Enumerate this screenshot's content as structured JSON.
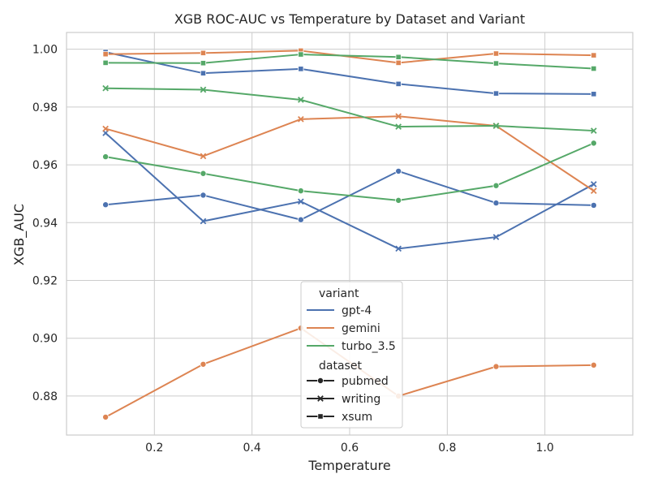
{
  "chart_data": {
    "type": "line",
    "title": "XGB ROC-AUC vs Temperature by Dataset and Variant",
    "xlabel": "Temperature",
    "ylabel": "XGB_AUC",
    "x": [
      0.1,
      0.3,
      0.5,
      0.7,
      0.9,
      1.1
    ],
    "xlim": [
      0.02,
      1.18
    ],
    "ylim": [
      0.8665,
      1.0058
    ],
    "xticks": [
      0.2,
      0.4,
      0.6,
      0.8,
      1.0
    ],
    "xtick_labels": [
      "0.2",
      "0.4",
      "0.6",
      "0.8",
      "1.0"
    ],
    "yticks": [
      0.88,
      0.9,
      0.92,
      0.94,
      0.96,
      0.98,
      1.0
    ],
    "ytick_labels": [
      "0.88",
      "0.90",
      "0.92",
      "0.94",
      "0.96",
      "0.98",
      "1.00"
    ],
    "grid": true,
    "legend": {
      "placement": "lower-center",
      "variant_title": "variant",
      "dataset_title": "dataset",
      "variants": [
        {
          "name": "gpt-4",
          "color": "#4c72b0"
        },
        {
          "name": "gemini",
          "color": "#dd8452"
        },
        {
          "name": "turbo_3.5",
          "color": "#55a868"
        }
      ],
      "datasets": [
        {
          "name": "pubmed",
          "marker": "circle"
        },
        {
          "name": "writing",
          "marker": "x"
        },
        {
          "name": "xsum",
          "marker": "square"
        }
      ]
    },
    "series": [
      {
        "variant": "gpt-4",
        "dataset": "pubmed",
        "color": "#4c72b0",
        "marker": "circle",
        "values": [
          0.9462,
          0.9495,
          0.941,
          0.9578,
          0.9468,
          0.946
        ]
      },
      {
        "variant": "gpt-4",
        "dataset": "writing",
        "color": "#4c72b0",
        "marker": "x",
        "values": [
          0.971,
          0.9405,
          0.9473,
          0.931,
          0.935,
          0.9533
        ]
      },
      {
        "variant": "gpt-4",
        "dataset": "xsum",
        "color": "#4c72b0",
        "marker": "square",
        "values": [
          0.999,
          0.9917,
          0.9932,
          0.988,
          0.9847,
          0.9845
        ]
      },
      {
        "variant": "gemini",
        "dataset": "pubmed",
        "color": "#dd8452",
        "marker": "circle",
        "values": [
          0.8727,
          0.891,
          0.9035,
          0.88,
          0.8902,
          0.8907
        ]
      },
      {
        "variant": "gemini",
        "dataset": "writing",
        "color": "#dd8452",
        "marker": "x",
        "values": [
          0.9725,
          0.963,
          0.9758,
          0.9768,
          0.9735,
          0.951
        ]
      },
      {
        "variant": "gemini",
        "dataset": "xsum",
        "color": "#dd8452",
        "marker": "square",
        "values": [
          0.9983,
          0.9987,
          0.9995,
          0.9953,
          0.9985,
          0.9979
        ]
      },
      {
        "variant": "turbo_3.5",
        "dataset": "pubmed",
        "color": "#55a868",
        "marker": "circle",
        "values": [
          0.9628,
          0.957,
          0.951,
          0.9477,
          0.9528,
          0.9675
        ]
      },
      {
        "variant": "turbo_3.5",
        "dataset": "writing",
        "color": "#55a868",
        "marker": "x",
        "values": [
          0.9865,
          0.986,
          0.9825,
          0.9732,
          0.9735,
          0.9718
        ]
      },
      {
        "variant": "turbo_3.5",
        "dataset": "xsum",
        "color": "#55a868",
        "marker": "square",
        "values": [
          0.9953,
          0.9952,
          0.9982,
          0.9973,
          0.9951,
          0.9933
        ]
      }
    ],
    "colors": {
      "background": "#ffffff",
      "grid": "#cccccc",
      "spine": "#cccccc",
      "text": "#262626",
      "legend_frame": "#cccccc"
    }
  }
}
